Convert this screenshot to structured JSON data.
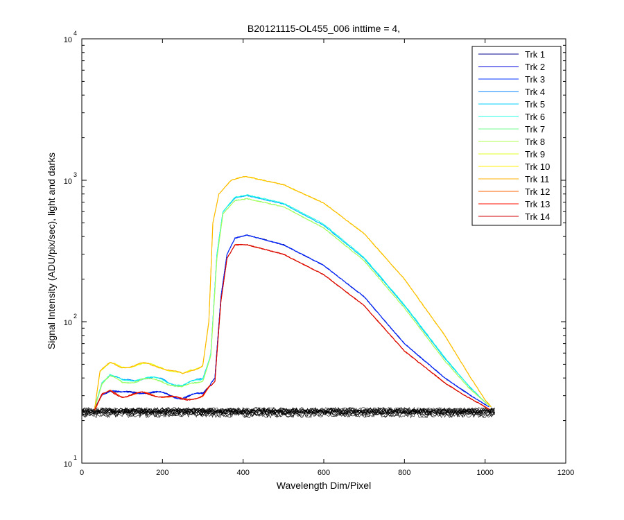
{
  "chart_data": {
    "type": "line",
    "title": "B20121115-OL455_006 inttime = 4,",
    "xlabel": "Wavelength Dim/Pixel",
    "ylabel": "Signal Intensity (ADU/pix/sec), light and darks",
    "xlim": [
      0,
      1200
    ],
    "ylim": [
      10,
      10000
    ],
    "yscale": "log",
    "x_ticks": [
      "0",
      "200",
      "400",
      "600",
      "800",
      "1000",
      "1200"
    ],
    "y_ticks": [
      {
        "base": "10",
        "exp": "1"
      },
      {
        "base": "10",
        "exp": "2"
      },
      {
        "base": "10",
        "exp": "3"
      },
      {
        "base": "10",
        "exp": "4"
      }
    ],
    "grid": false,
    "legend_position": "top-right",
    "series": [
      {
        "name": "Trk 1",
        "color": "#00008f",
        "x": [
          32,
          50,
          70,
          100,
          150,
          200,
          250,
          300,
          330,
          345,
          360,
          380,
          410,
          500,
          600,
          700,
          800,
          900,
          950,
          990,
          1010
        ],
        "y": [
          24,
          31,
          33,
          31,
          32,
          31,
          29,
          31,
          40,
          150,
          300,
          390,
          410,
          350,
          250,
          150,
          70,
          40,
          32,
          27,
          25
        ]
      },
      {
        "name": "Trk 2",
        "color": "#0000df",
        "x": [
          32,
          50,
          70,
          100,
          150,
          200,
          250,
          300,
          330,
          345,
          360,
          380,
          410,
          500,
          600,
          700,
          800,
          900,
          950,
          990,
          1010
        ],
        "y": [
          24,
          31,
          33,
          31,
          32,
          31,
          29,
          31,
          40,
          150,
          300,
          390,
          410,
          350,
          250,
          150,
          70,
          40,
          32,
          27,
          25
        ]
      },
      {
        "name": "Trk 3",
        "color": "#0030ff",
        "x": [
          32,
          50,
          70,
          100,
          150,
          200,
          250,
          300,
          330,
          345,
          360,
          380,
          410,
          500,
          600,
          700,
          800,
          900,
          950,
          990,
          1010
        ],
        "y": [
          24,
          31,
          33,
          31,
          32,
          31,
          29,
          31,
          40,
          150,
          300,
          390,
          410,
          350,
          250,
          150,
          70,
          40,
          32,
          27,
          25
        ]
      },
      {
        "name": "Trk 4",
        "color": "#0080ff",
        "x": [
          32,
          50,
          70,
          100,
          150,
          200,
          250,
          300,
          320,
          335,
          350,
          380,
          410,
          500,
          600,
          700,
          800,
          900,
          960,
          1000,
          1015
        ],
        "y": [
          25,
          38,
          42,
          38,
          40,
          39,
          35,
          40,
          60,
          300,
          600,
          750,
          780,
          680,
          480,
          280,
          130,
          55,
          35,
          27,
          25
        ]
      },
      {
        "name": "Trk 5",
        "color": "#00cfff",
        "x": [
          32,
          50,
          70,
          100,
          150,
          200,
          250,
          300,
          320,
          335,
          350,
          380,
          410,
          500,
          600,
          700,
          800,
          900,
          960,
          1000,
          1015
        ],
        "y": [
          25,
          38,
          42,
          38,
          40,
          39,
          35,
          40,
          60,
          300,
          600,
          750,
          780,
          680,
          480,
          280,
          130,
          55,
          35,
          27,
          25
        ]
      },
      {
        "name": "Trk 6",
        "color": "#20ffdf",
        "x": [
          32,
          50,
          70,
          100,
          150,
          200,
          250,
          300,
          320,
          335,
          350,
          380,
          410,
          500,
          600,
          700,
          800,
          900,
          960,
          1000,
          1015
        ],
        "y": [
          25,
          38,
          42,
          38,
          40,
          39,
          35,
          40,
          60,
          300,
          600,
          760,
          790,
          690,
          490,
          285,
          132,
          56,
          35,
          27,
          25
        ]
      },
      {
        "name": "Trk 7",
        "color": "#70ff8f",
        "x": [
          32,
          50,
          70,
          100,
          150,
          200,
          250,
          300,
          320,
          335,
          350,
          380,
          410,
          500,
          600,
          700,
          800,
          900,
          960,
          1000,
          1015
        ],
        "y": [
          25,
          37,
          41,
          37,
          39,
          38,
          34,
          39,
          58,
          280,
          580,
          720,
          740,
          650,
          460,
          270,
          125,
          53,
          34,
          27,
          25
        ]
      },
      {
        "name": "Trk 8",
        "color": "#afff50",
        "x": [
          32,
          50,
          70,
          100,
          150,
          200,
          250,
          300,
          320,
          335,
          350,
          380,
          410,
          500,
          600,
          700,
          800,
          900,
          960,
          1000,
          1015
        ],
        "y": [
          25,
          37,
          41,
          37,
          39,
          38,
          34,
          39,
          58,
          280,
          580,
          720,
          740,
          650,
          460,
          270,
          125,
          53,
          34,
          27,
          25
        ]
      },
      {
        "name": "Trk 9",
        "color": "#dfff20",
        "x": [
          32,
          45,
          70,
          100,
          150,
          200,
          250,
          300,
          315,
          325,
          340,
          370,
          400,
          410,
          500,
          600,
          700,
          800,
          900,
          960,
          1000,
          1015
        ],
        "y": [
          25,
          45,
          50,
          48,
          50,
          48,
          42,
          50,
          100,
          500,
          800,
          1000,
          1060,
          1060,
          930,
          690,
          420,
          200,
          80,
          42,
          28,
          25
        ]
      },
      {
        "name": "Trk 10",
        "color": "#ffef00",
        "x": [
          32,
          45,
          70,
          100,
          150,
          200,
          250,
          300,
          315,
          325,
          340,
          370,
          400,
          410,
          500,
          600,
          700,
          800,
          900,
          960,
          1000,
          1015
        ],
        "y": [
          25,
          45,
          50,
          48,
          50,
          48,
          42,
          50,
          100,
          500,
          800,
          1000,
          1060,
          1060,
          930,
          690,
          420,
          200,
          80,
          42,
          28,
          25
        ]
      },
      {
        "name": "Trk 11",
        "color": "#ffaf00",
        "x": [
          32,
          45,
          70,
          100,
          150,
          200,
          250,
          300,
          315,
          325,
          340,
          370,
          400,
          410,
          500,
          600,
          700,
          800,
          900,
          960,
          1000,
          1015
        ],
        "y": [
          25,
          45,
          50,
          48,
          50,
          48,
          42,
          50,
          100,
          500,
          800,
          1000,
          1060,
          1060,
          930,
          690,
          420,
          200,
          80,
          42,
          28,
          25
        ]
      },
      {
        "name": "Trk 12",
        "color": "#ff6000",
        "x": [
          32,
          50,
          70,
          100,
          150,
          200,
          250,
          300,
          330,
          345,
          360,
          380,
          410,
          500,
          600,
          700,
          800,
          900,
          950,
          990,
          1010
        ],
        "y": [
          24,
          30,
          32,
          30,
          31,
          30,
          28,
          30,
          38,
          140,
          280,
          350,
          350,
          300,
          215,
          130,
          62,
          37,
          30,
          26,
          24
        ]
      },
      {
        "name": "Trk 13",
        "color": "#ff1000",
        "x": [
          32,
          50,
          70,
          100,
          150,
          200,
          250,
          300,
          330,
          345,
          360,
          380,
          410,
          500,
          600,
          700,
          800,
          900,
          950,
          990,
          1010
        ],
        "y": [
          24,
          30,
          32,
          30,
          31,
          30,
          28,
          30,
          38,
          140,
          280,
          350,
          350,
          300,
          215,
          130,
          62,
          37,
          30,
          26,
          24
        ]
      },
      {
        "name": "Trk 14",
        "color": "#cf0000",
        "x": [
          32,
          50,
          70,
          100,
          150,
          200,
          250,
          300,
          330,
          345,
          360,
          380,
          410,
          500,
          600,
          700,
          800,
          900,
          950,
          990,
          1010
        ],
        "y": [
          24,
          30,
          32,
          30,
          31,
          30,
          28,
          30,
          38,
          140,
          280,
          350,
          350,
          300,
          215,
          130,
          62,
          37,
          30,
          26,
          24
        ]
      }
    ],
    "dark_frames": {
      "color": "#000000",
      "x_range": [
        0,
        1024
      ],
      "y_range": [
        21,
        25
      ]
    }
  }
}
